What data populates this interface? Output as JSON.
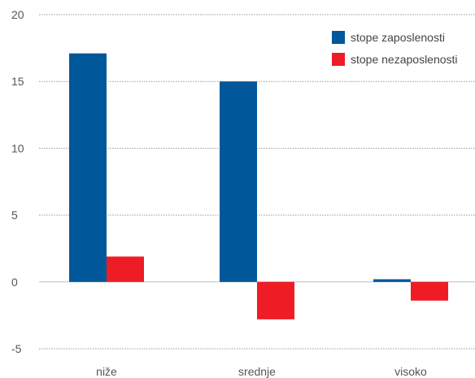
{
  "chart_data": {
    "type": "bar",
    "title": "",
    "xlabel": "",
    "ylabel": "",
    "categories": [
      "niže",
      "srednje",
      "visoko"
    ],
    "series": [
      {
        "name": "stope zaposlenosti",
        "color": "#00589b",
        "values": [
          17.1,
          15.0,
          0.2
        ]
      },
      {
        "name": "stope nezaposlenosti",
        "color": "#ee1c25",
        "values": [
          1.9,
          -2.8,
          -1.4
        ]
      }
    ],
    "ylim": [
      -5,
      20
    ],
    "yticks": [
      -5,
      0,
      5,
      10,
      15,
      20
    ],
    "grid": true,
    "legend": "top-right"
  }
}
